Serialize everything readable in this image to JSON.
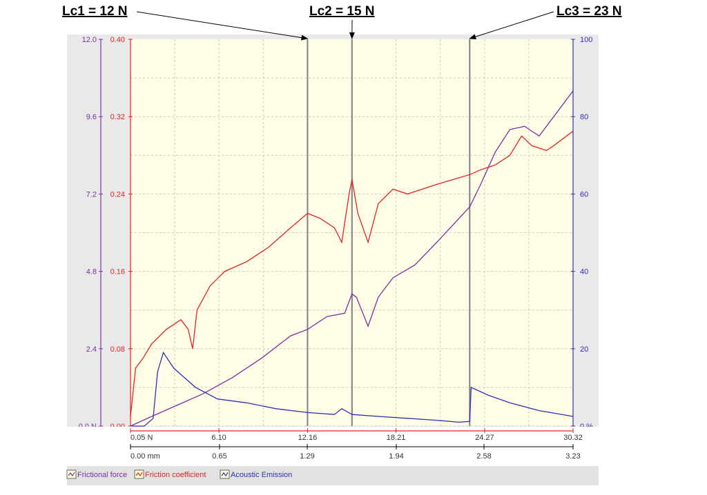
{
  "chart_data": {
    "type": "line",
    "annotations": [
      {
        "label": "Lc1 = 12 N",
        "x_force": 12.16
      },
      {
        "label": "Lc2 = 15 N",
        "x_force": 15.2
      },
      {
        "label": "Lc3 = 23 N",
        "x_force": 23.25
      }
    ],
    "x_axis_force": {
      "unit": "N",
      "tick_labels": [
        "0.05 N",
        "6.10",
        "12.16",
        "18.21",
        "24.27",
        "30.32"
      ],
      "tick_values": [
        0.05,
        6.1,
        12.16,
        18.21,
        24.27,
        30.32
      ],
      "range": [
        0.05,
        30.32
      ]
    },
    "x_axis_distance": {
      "unit": "mm",
      "tick_labels": [
        "0.00 mm",
        "0.65",
        "1.29",
        "1.94",
        "2.58",
        "3.23"
      ],
      "tick_values": [
        0.0,
        0.65,
        1.29,
        1.94,
        2.58,
        3.23
      ],
      "range": [
        0.0,
        3.23
      ]
    },
    "y_axis_frictional_force": {
      "tick_labels": [
        "0.0 N",
        "2.4",
        "4.8",
        "7.2",
        "9.6",
        "12.0"
      ],
      "tick_values": [
        0,
        2.4,
        4.8,
        7.2,
        9.6,
        12.0
      ],
      "range": [
        0,
        12.0
      ]
    },
    "y_axis_friction_coefficient": {
      "tick_labels": [
        "0.00",
        "0.08",
        "0.16",
        "0.24",
        "0.32",
        "0.40"
      ],
      "tick_values": [
        0,
        0.08,
        0.16,
        0.24,
        0.32,
        0.4
      ],
      "range": [
        0,
        0.4
      ]
    },
    "y_axis_acoustic_emission": {
      "tick_labels": [
        "0 %",
        "20",
        "40",
        "60",
        "80",
        "100"
      ],
      "tick_values": [
        0,
        20,
        40,
        60,
        80,
        100
      ],
      "range": [
        0,
        100
      ]
    },
    "grid": true,
    "legend_position": "bottom-left",
    "series": [
      {
        "name": "Frictional force",
        "color": "#7b2fa6",
        "axis": "frictional_force",
        "points": [
          [
            0.05,
            0.0
          ],
          [
            1.5,
            0.3
          ],
          [
            3,
            0.6
          ],
          [
            5,
            1.0
          ],
          [
            7,
            1.5
          ],
          [
            9,
            2.1
          ],
          [
            11,
            2.8
          ],
          [
            12.16,
            3.0
          ],
          [
            13.5,
            3.4
          ],
          [
            14.7,
            3.5
          ],
          [
            15.2,
            4.1
          ],
          [
            15.5,
            4.0
          ],
          [
            16.3,
            3.1
          ],
          [
            17,
            4.0
          ],
          [
            18,
            4.6
          ],
          [
            19.5,
            5.0
          ],
          [
            21,
            5.7
          ],
          [
            23.25,
            6.8
          ],
          [
            24,
            7.5
          ],
          [
            25,
            8.5
          ],
          [
            26,
            9.2
          ],
          [
            27,
            9.3
          ],
          [
            28,
            9.0
          ],
          [
            29,
            9.6
          ],
          [
            30.32,
            10.4
          ]
        ]
      },
      {
        "name": "Friction coefficient",
        "color": "#e02424",
        "axis": "friction_coefficient",
        "points": [
          [
            0.05,
            0.01
          ],
          [
            0.4,
            0.06
          ],
          [
            0.9,
            0.07
          ],
          [
            1.5,
            0.085
          ],
          [
            2.5,
            0.1
          ],
          [
            3.5,
            0.11
          ],
          [
            4.0,
            0.1
          ],
          [
            4.3,
            0.08
          ],
          [
            4.6,
            0.12
          ],
          [
            5.5,
            0.145
          ],
          [
            6.5,
            0.16
          ],
          [
            8,
            0.17
          ],
          [
            9.5,
            0.185
          ],
          [
            11,
            0.205
          ],
          [
            12.16,
            0.22
          ],
          [
            13,
            0.215
          ],
          [
            14,
            0.205
          ],
          [
            14.5,
            0.19
          ],
          [
            15.0,
            0.24
          ],
          [
            15.2,
            0.255
          ],
          [
            15.6,
            0.22
          ],
          [
            16.3,
            0.19
          ],
          [
            17,
            0.23
          ],
          [
            18,
            0.245
          ],
          [
            19,
            0.24
          ],
          [
            21,
            0.25
          ],
          [
            23.25,
            0.26
          ],
          [
            24,
            0.265
          ],
          [
            25,
            0.27
          ],
          [
            26,
            0.28
          ],
          [
            26.8,
            0.3
          ],
          [
            27.5,
            0.29
          ],
          [
            28.5,
            0.285
          ],
          [
            29,
            0.29
          ],
          [
            30.32,
            0.305
          ]
        ]
      },
      {
        "name": "Acoustic Emission",
        "color": "#2f2fb4",
        "axis": "acoustic_emission",
        "points": [
          [
            0.05,
            0
          ],
          [
            1.0,
            0
          ],
          [
            1.6,
            2
          ],
          [
            1.9,
            14
          ],
          [
            2.3,
            19
          ],
          [
            3.0,
            15
          ],
          [
            4.5,
            10
          ],
          [
            6.0,
            7
          ],
          [
            8,
            6
          ],
          [
            10,
            4.5
          ],
          [
            12.16,
            3.5
          ],
          [
            14,
            3.0
          ],
          [
            14.5,
            4.5
          ],
          [
            15.2,
            3.0
          ],
          [
            17,
            2.5
          ],
          [
            19,
            2.0
          ],
          [
            21,
            1.5
          ],
          [
            22.5,
            1.0
          ],
          [
            23.25,
            1.2
          ],
          [
            23.35,
            10
          ],
          [
            24.5,
            8
          ],
          [
            26,
            6
          ],
          [
            28,
            4.0
          ],
          [
            30.32,
            2.5
          ]
        ]
      }
    ]
  },
  "legend": [
    {
      "label": "Frictional force",
      "color": "#7b2fa6"
    },
    {
      "label": "Friction coefficient",
      "color": "#e02424"
    },
    {
      "label": "Acoustic Emission",
      "color": "#2f2fb4"
    }
  ]
}
